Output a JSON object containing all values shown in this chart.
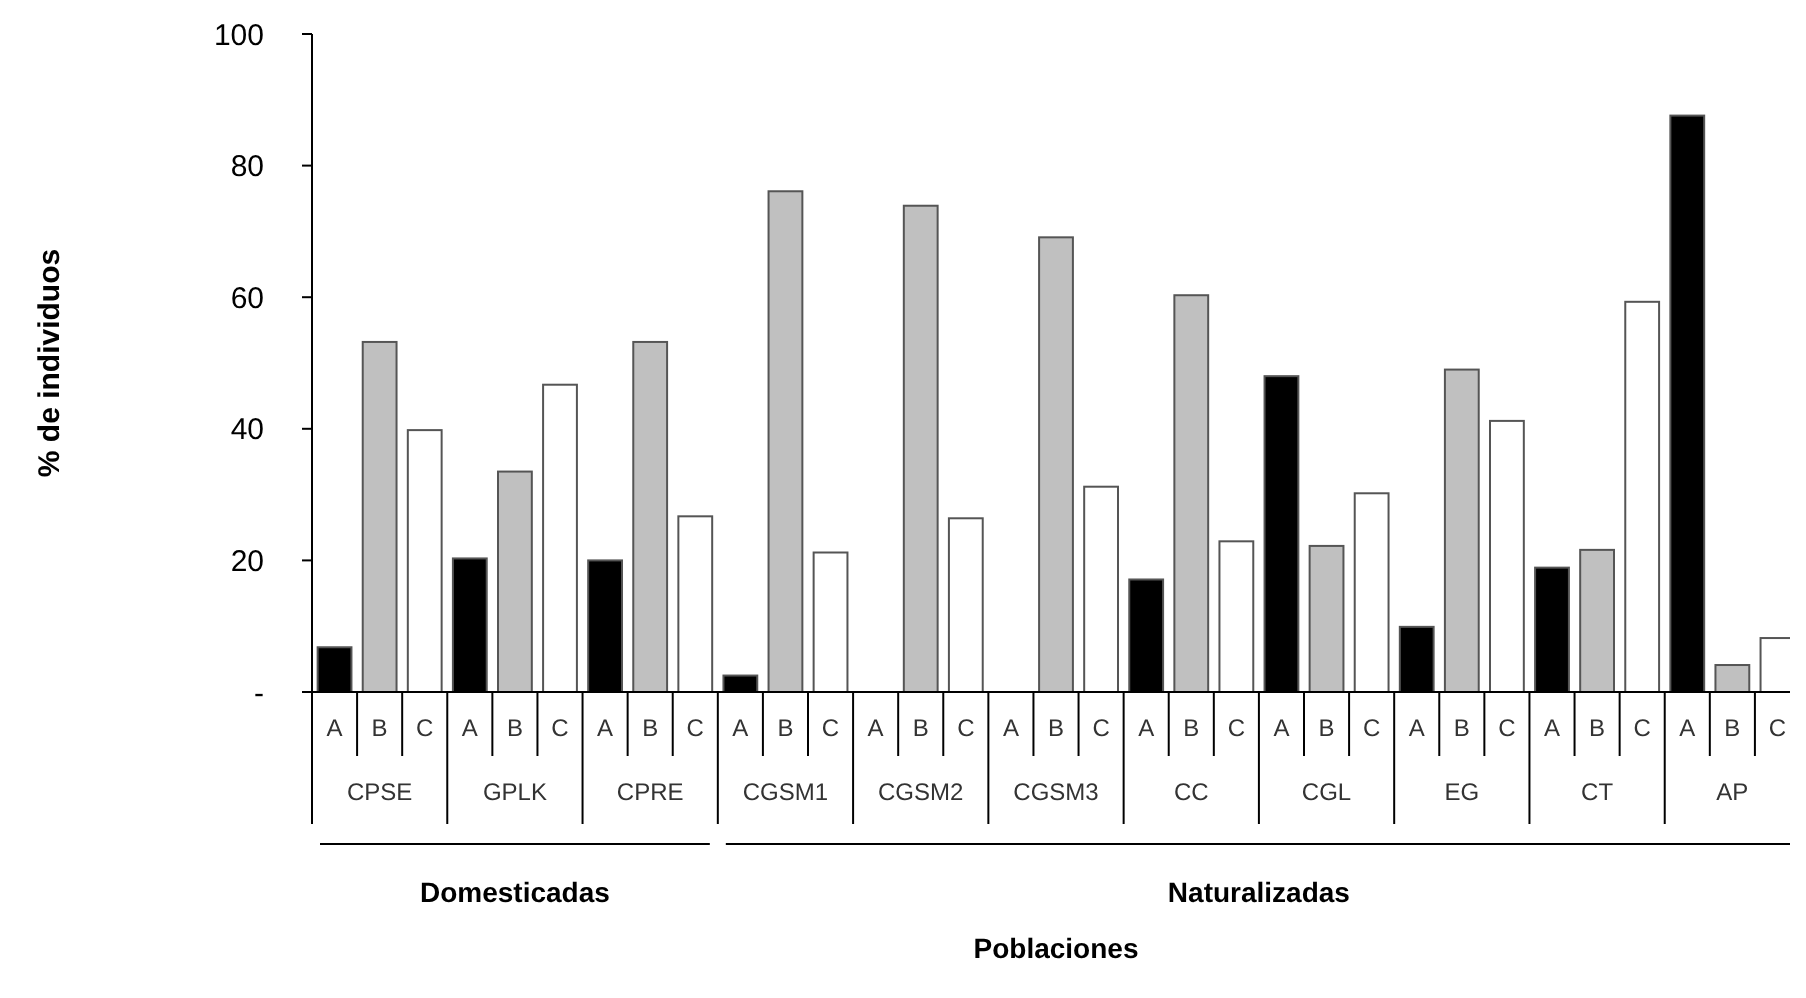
{
  "chart_data": {
    "type": "bar",
    "xlabel": "Poblaciones",
    "ylabel": "% de individuos",
    "categories": [
      "CPSE",
      "GPLK",
      "CPRE",
      "CGSM1",
      "CGSM2",
      "CGSM3",
      "CC",
      "CGL",
      "EG",
      "CT",
      "AP"
    ],
    "series": [
      {
        "name": "A",
        "color": "#000000",
        "values": [
          6.8,
          20.3,
          20,
          2.5,
          0,
          0,
          17.1,
          48,
          9.9,
          18.9,
          87.6
        ]
      },
      {
        "name": "B",
        "color": "#c0c0c0",
        "values": [
          53.2,
          33.5,
          53.2,
          76.1,
          73.9,
          69.1,
          60.3,
          22.2,
          49,
          21.6,
          4.1
        ]
      },
      {
        "name": "C",
        "color": "#ffffff",
        "values": [
          39.8,
          46.7,
          26.7,
          21.2,
          26.4,
          31.2,
          22.9,
          30.2,
          41.2,
          59.3,
          8.2
        ]
      }
    ],
    "ylim": [
      0,
      100
    ],
    "yticks": [
      {
        "value": 0,
        "label": "-"
      },
      20,
      40,
      60,
      80,
      100
    ],
    "grid": false,
    "annotations": [
      "Domesticadas",
      "Naturalizadas"
    ]
  }
}
